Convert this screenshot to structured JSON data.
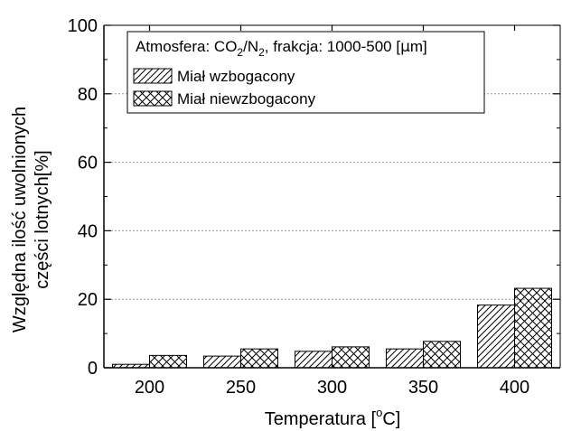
{
  "chart_data": {
    "type": "bar",
    "categories": [
      "200",
      "250",
      "300",
      "350",
      "400"
    ],
    "series": [
      {
        "name": "Miał wzbogacony",
        "pattern": "diagonal-hatch",
        "values": [
          1.0,
          3.4,
          4.8,
          5.5,
          18.3
        ]
      },
      {
        "name": "Miał niewzbogacony",
        "pattern": "cross-hatch",
        "values": [
          3.6,
          5.5,
          6.1,
          7.7,
          23.2
        ]
      }
    ],
    "xlabel": {
      "pre": "Temperatura [",
      "sup": "o",
      "post": "C]"
    },
    "ylabel": {
      "line1": "Względna ilość uwolnionych",
      "line2": "części lotnych[%]"
    },
    "ylim": [
      0,
      100
    ],
    "yticks": [
      "0",
      "20",
      "40",
      "60",
      "80",
      "100"
    ],
    "grid": "horizontal-dashed",
    "legend": {
      "placement": "top-left",
      "title_parts": {
        "a": "Atmosfera: CO",
        "sub1": "2",
        "b": "/N",
        "sub2": "2",
        "c": ", frakcja: 1000-500 [",
        "mu": "μ",
        "d": "m]"
      }
    },
    "colors": {
      "bar_fill": "#ffffff",
      "stroke": "#000000",
      "grid": "#999999"
    }
  }
}
